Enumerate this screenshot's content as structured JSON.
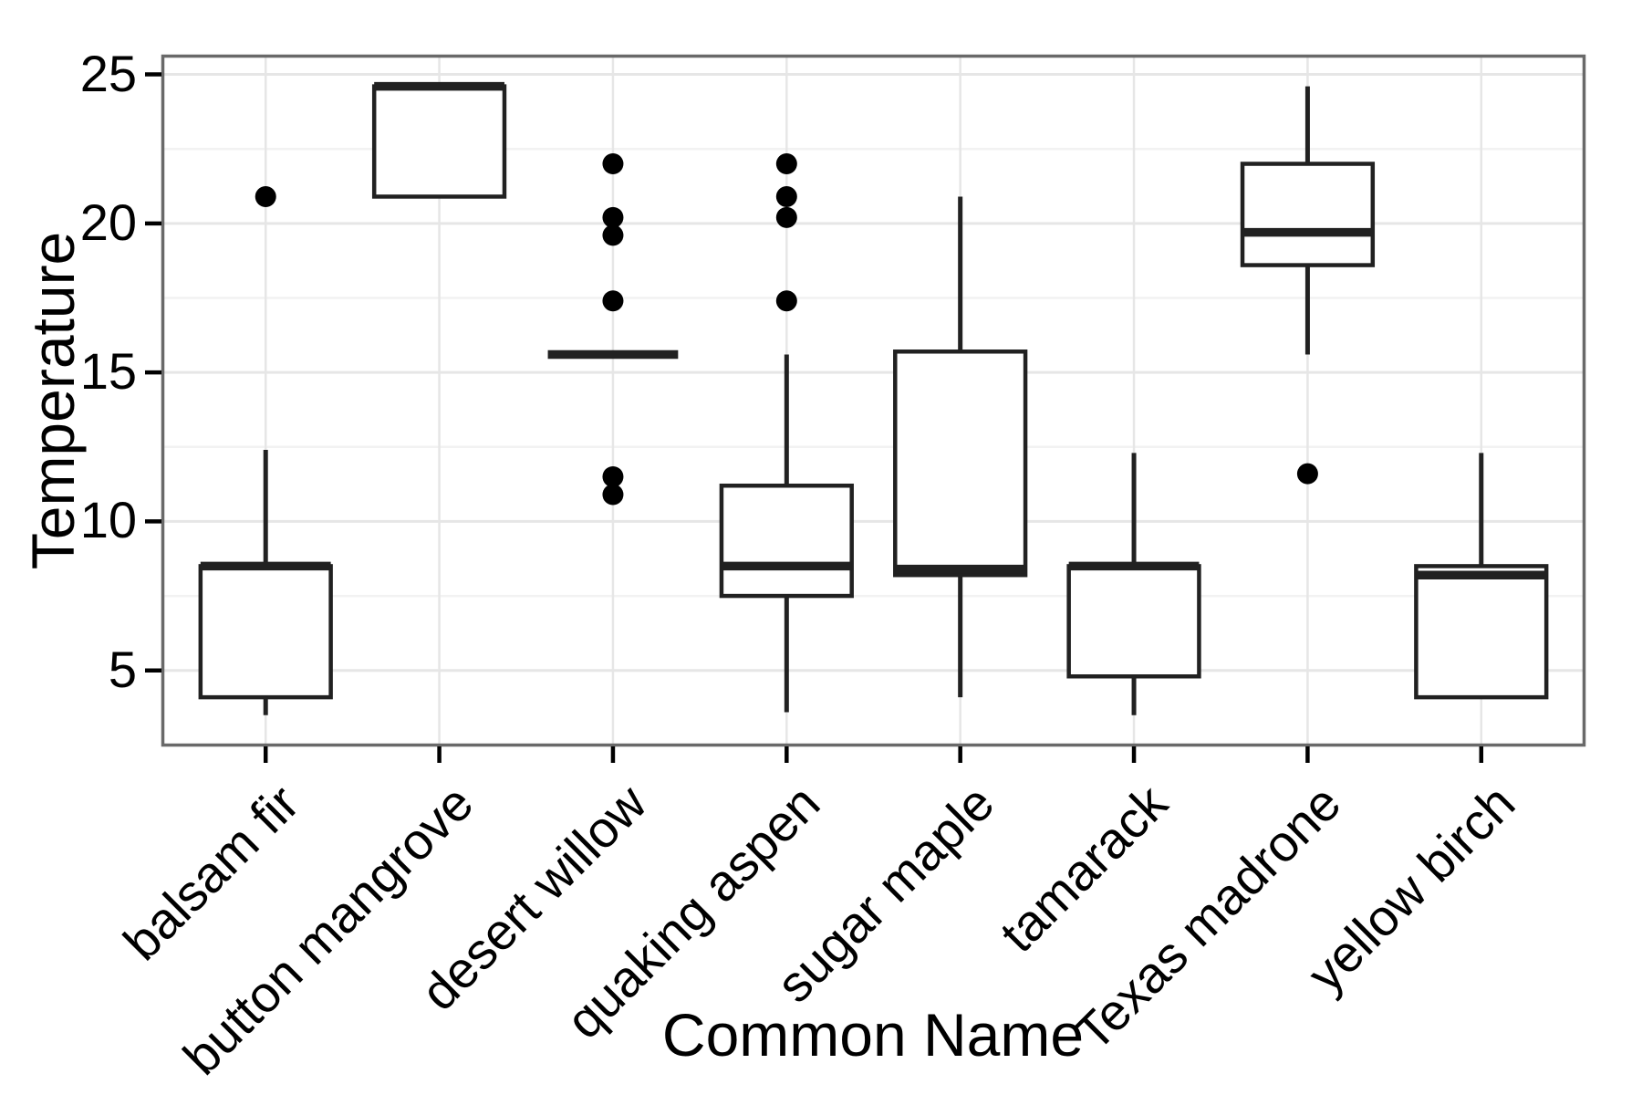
{
  "chart_data": {
    "type": "boxplot",
    "xlabel": "Common Name",
    "ylabel": "Temperature",
    "categories": [
      "balsam fir",
      "button mangrove",
      "desert willow",
      "quaking aspen",
      "sugar maple",
      "tamarack",
      "Texas madrone",
      "yellow birch"
    ],
    "series": [
      {
        "name": "balsam fir",
        "low": 3.5,
        "q1": 4.1,
        "median": 8.5,
        "q3": 8.5,
        "high": 12.4,
        "outliers": [
          20.9
        ]
      },
      {
        "name": "button mangrove",
        "low": 20.9,
        "q1": 20.9,
        "median": 24.6,
        "q3": 24.6,
        "high": 24.6,
        "outliers": []
      },
      {
        "name": "desert willow",
        "low": 15.6,
        "q1": 15.6,
        "median": 15.6,
        "q3": 15.6,
        "high": 15.6,
        "outliers": [
          22.0,
          20.2,
          19.6,
          17.4,
          11.5,
          10.9
        ]
      },
      {
        "name": "quaking aspen",
        "low": 3.6,
        "q1": 7.5,
        "median": 8.5,
        "q3": 11.2,
        "high": 15.6,
        "outliers": [
          22.0,
          20.9,
          20.2,
          17.4
        ]
      },
      {
        "name": "sugar maple",
        "low": 4.1,
        "q1": 8.2,
        "median": 8.4,
        "q3": 15.7,
        "high": 20.9,
        "outliers": []
      },
      {
        "name": "tamarack",
        "low": 3.5,
        "q1": 4.8,
        "median": 8.5,
        "q3": 8.5,
        "high": 12.3,
        "outliers": []
      },
      {
        "name": "Texas madrone",
        "low": 15.6,
        "q1": 18.6,
        "median": 19.7,
        "q3": 22.0,
        "high": 24.6,
        "outliers": [
          11.6
        ]
      },
      {
        "name": "yellow birch",
        "low": 4.1,
        "q1": 4.1,
        "median": 8.2,
        "q3": 8.5,
        "high": 12.3,
        "outliers": []
      }
    ],
    "ylim": [
      2.45,
      25.66
    ],
    "y_major_ticks": [
      5,
      10,
      15,
      20,
      25
    ],
    "y_major_labels": [
      "5",
      "10",
      "15",
      "20",
      "25"
    ],
    "y_minor_ticks": [
      7.5,
      12.5,
      17.5,
      22.5
    ],
    "grid": "on",
    "legend": "none",
    "colors": {
      "background": "#ffffff",
      "panel_border": "#696969",
      "grid_major": "#e6e6e6",
      "grid_minor": "#f2f2f2",
      "box_stroke": "#212121",
      "tick": "#000000",
      "text": "#000000"
    }
  }
}
